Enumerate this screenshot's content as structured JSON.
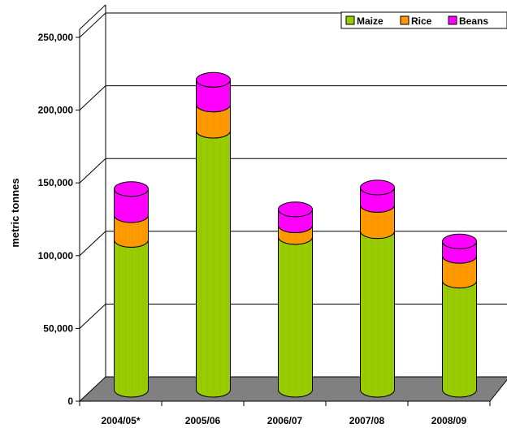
{
  "chart_data": {
    "type": "bar",
    "stacked": true,
    "style": "3d-cylinder",
    "categories": [
      "2004/05*",
      "2005/06",
      "2006/07",
      "2007/08",
      "2008/09"
    ],
    "series": [
      {
        "name": "Maize",
        "values": [
          103000,
          178000,
          105000,
          109000,
          75000
        ]
      },
      {
        "name": "Rice",
        "values": [
          17000,
          18000,
          8000,
          18000,
          17000
        ]
      },
      {
        "name": "Beans",
        "values": [
          18000,
          17000,
          11000,
          12000,
          10000
        ]
      }
    ],
    "colors": {
      "Maize": "#99cc00",
      "Rice": "#ff9900",
      "Beans": "#ff00ff",
      "floor": "#808080"
    },
    "ylabel": "metric tonnes",
    "xlabel": "",
    "ylim": [
      0,
      250000
    ],
    "yticks": [
      0,
      50000,
      100000,
      150000,
      200000,
      250000
    ],
    "ytick_labels": [
      "0",
      "50,000",
      "100,000",
      "150,000",
      "200,000",
      "250,000"
    ],
    "grid": true,
    "legend_position": "top-right"
  }
}
